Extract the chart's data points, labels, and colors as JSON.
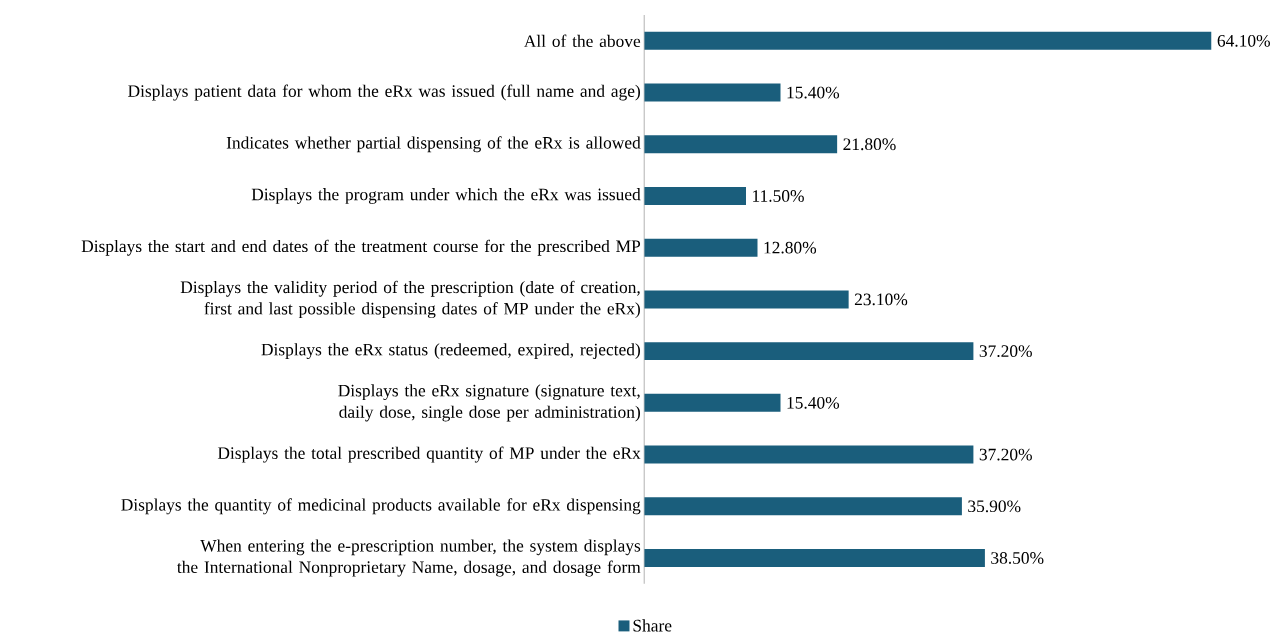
{
  "chart_data": {
    "type": "bar",
    "orientation": "horizontal",
    "categories": [
      "All of the above",
      "Displays patient data for whom the eRx was issued (full name and age)",
      "Indicates whether partial dispensing of the eRx is allowed",
      "Displays the program under which the eRx was issued",
      "Displays the start and end dates of the treatment course for the prescribed MP",
      "Displays the validity period of the prescription (date of creation, first and last possible dispensing dates of MP under the eRx)",
      "Displays the eRx status (redeemed, expired, rejected)",
      "Displays the eRx signature (signature text, daily dose, single dose per administration)",
      "Displays the total prescribed quantity of MP under the eRx",
      "Displays the quantity of medicinal products available for eRx dispensing",
      "When entering the e-prescription number, the system displays the International Nonproprietary Name, dosage, and dosage form"
    ],
    "series": [
      {
        "name": "Share",
        "color": "#1a5e7c",
        "values": [
          64.1,
          15.4,
          21.8,
          11.5,
          12.8,
          23.1,
          37.2,
          15.4,
          37.2,
          35.9,
          38.5
        ],
        "value_labels": [
          "64.10%",
          "15.40%",
          "21.80%",
          "11.50%",
          "12.80%",
          "23.10%",
          "37.20%",
          "15.40%",
          "37.20%",
          "35.90%",
          "38.50%"
        ]
      }
    ],
    "legend": "bottom"
  }
}
